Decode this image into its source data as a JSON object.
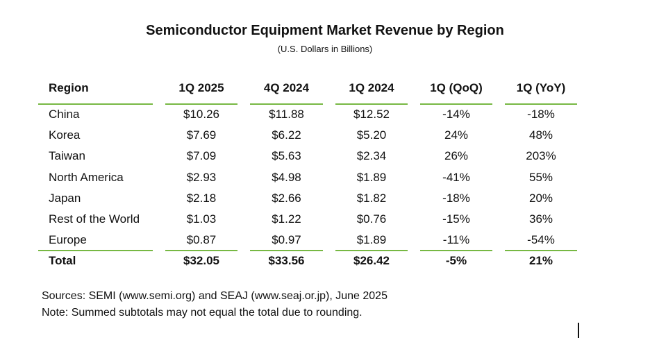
{
  "title": "Semiconductor Equipment Market Revenue by Region",
  "subtitle": "(U.S. Dollars in Billions)",
  "colors": {
    "rule": "#77b843",
    "text": "#111111"
  },
  "table": {
    "headers": [
      "Region",
      "1Q 2025",
      "4Q 2024",
      "1Q 2024",
      "1Q (QoQ)",
      "1Q (YoY)"
    ],
    "rows": [
      [
        "China",
        "$10.26",
        "$11.88",
        "$12.52",
        "-14%",
        "-18%"
      ],
      [
        "Korea",
        "$7.69",
        "$6.22",
        "$5.20",
        "24%",
        "48%"
      ],
      [
        "Taiwan",
        "$7.09",
        "$5.63",
        "$2.34",
        "26%",
        "203%"
      ],
      [
        "North America",
        "$2.93",
        "$4.98",
        "$1.89",
        "-41%",
        "55%"
      ],
      [
        "Japan",
        "$2.18",
        "$2.66",
        "$1.82",
        "-18%",
        "20%"
      ],
      [
        "Rest of the World",
        "$1.03",
        "$1.22",
        "$0.76",
        "-15%",
        "36%"
      ],
      [
        "Europe",
        "$0.87",
        "$0.97",
        "$1.89",
        "-11%",
        "-54%"
      ]
    ],
    "total": [
      "Total",
      "$32.05",
      "$33.56",
      "$26.42",
      "-5%",
      "21%"
    ]
  },
  "sources": "Sources: SEMI (www.semi.org) and SEAJ (www.seaj.or.jp), June 2025",
  "note": "Note: Summed subtotals may not equal the total due to rounding."
}
